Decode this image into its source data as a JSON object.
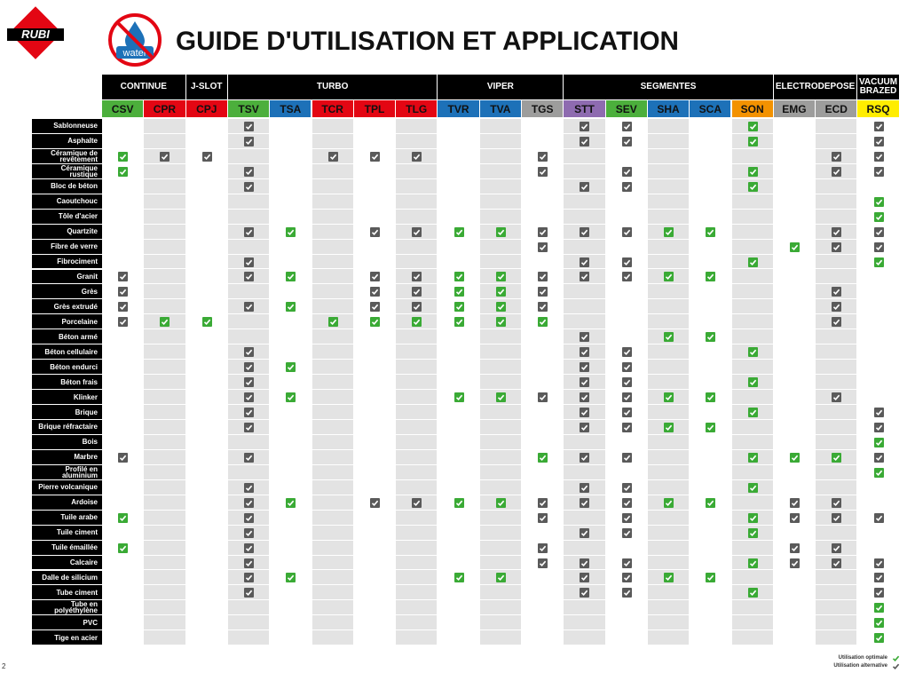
{
  "header": {
    "logo": "RUBI",
    "icon_text": "water",
    "title": "GUIDE D'UTILISATION ET APPLICATION"
  },
  "table": {
    "groups": [
      {
        "label": "CONTINUE",
        "span": 2
      },
      {
        "label": "J-SLOT",
        "span": 1
      },
      {
        "label": "TURBO",
        "span": 5
      },
      {
        "label": "VIPER",
        "span": 3
      },
      {
        "label": "SEGMENTES",
        "span": 5
      },
      {
        "label": "ELECTRODEPOSE",
        "span": 2
      },
      {
        "label": "VACUUM BRAZED",
        "span": 1
      }
    ],
    "columns": [
      {
        "code": "CSV",
        "color": "#4caf3c"
      },
      {
        "code": "CPR",
        "color": "#e30613"
      },
      {
        "code": "CPJ",
        "color": "#e30613"
      },
      {
        "code": "TSV",
        "color": "#4caf3c"
      },
      {
        "code": "TSA",
        "color": "#1d71b8"
      },
      {
        "code": "TCR",
        "color": "#e30613"
      },
      {
        "code": "TPL",
        "color": "#e30613"
      },
      {
        "code": "TLG",
        "color": "#e30613"
      },
      {
        "code": "TVR",
        "color": "#1d71b8"
      },
      {
        "code": "TVA",
        "color": "#1d71b8"
      },
      {
        "code": "TGS",
        "color": "#9d9d9c"
      },
      {
        "code": "STT",
        "color": "#8e6bb0"
      },
      {
        "code": "SEV",
        "color": "#4caf3c"
      },
      {
        "code": "SHA",
        "color": "#1d71b8"
      },
      {
        "code": "SCA",
        "color": "#1d71b8"
      },
      {
        "code": "SON",
        "color": "#f39200"
      },
      {
        "code": "EMG",
        "color": "#9d9d9c"
      },
      {
        "code": "ECD",
        "color": "#9d9d9c"
      },
      {
        "code": "RSQ",
        "color": "#ffed00"
      }
    ],
    "rows": [
      {
        "label": "Sablonneuse",
        "cells": [
          0,
          0,
          0,
          2,
          0,
          0,
          0,
          0,
          0,
          0,
          0,
          2,
          2,
          0,
          0,
          1,
          0,
          0,
          2
        ]
      },
      {
        "label": "Asphalte",
        "cells": [
          0,
          0,
          0,
          2,
          0,
          0,
          0,
          0,
          0,
          0,
          0,
          2,
          2,
          0,
          0,
          1,
          0,
          0,
          2
        ]
      },
      {
        "label": "Céramique de revêtement",
        "cells": [
          1,
          2,
          2,
          0,
          0,
          2,
          2,
          2,
          0,
          0,
          2,
          0,
          0,
          0,
          0,
          0,
          0,
          2,
          2
        ]
      },
      {
        "label": "Céramique rustique",
        "cells": [
          1,
          0,
          0,
          2,
          0,
          0,
          0,
          0,
          0,
          0,
          2,
          0,
          2,
          0,
          0,
          1,
          0,
          2,
          2
        ]
      },
      {
        "label": "Bloc de béton",
        "cells": [
          0,
          0,
          0,
          2,
          0,
          0,
          0,
          0,
          0,
          0,
          0,
          2,
          2,
          0,
          0,
          1,
          0,
          0,
          0
        ]
      },
      {
        "label": "Caoutchouc",
        "cells": [
          0,
          0,
          0,
          0,
          0,
          0,
          0,
          0,
          0,
          0,
          0,
          0,
          0,
          0,
          0,
          0,
          0,
          0,
          1
        ]
      },
      {
        "label": "Tôle d'acier",
        "cells": [
          0,
          0,
          0,
          0,
          0,
          0,
          0,
          0,
          0,
          0,
          0,
          0,
          0,
          0,
          0,
          0,
          0,
          0,
          1
        ]
      },
      {
        "label": "Quartzite",
        "cells": [
          0,
          0,
          0,
          2,
          1,
          0,
          2,
          2,
          1,
          1,
          2,
          2,
          2,
          1,
          1,
          0,
          0,
          2,
          2
        ]
      },
      {
        "label": "Fibre de verre",
        "cells": [
          0,
          0,
          0,
          0,
          0,
          0,
          0,
          0,
          0,
          0,
          2,
          0,
          0,
          0,
          0,
          0,
          1,
          2,
          2
        ]
      },
      {
        "label": "Fibrociment",
        "cells": [
          0,
          0,
          0,
          2,
          0,
          0,
          0,
          0,
          0,
          0,
          0,
          2,
          2,
          0,
          0,
          1,
          0,
          0,
          1
        ]
      },
      {
        "label": "Granit",
        "cells": [
          2,
          0,
          0,
          2,
          1,
          0,
          2,
          2,
          1,
          1,
          2,
          2,
          2,
          1,
          1,
          0,
          0,
          0,
          0
        ]
      },
      {
        "label": "Grès",
        "cells": [
          2,
          0,
          0,
          0,
          0,
          0,
          2,
          2,
          1,
          1,
          2,
          0,
          0,
          0,
          0,
          0,
          0,
          2,
          0
        ]
      },
      {
        "label": "Grès extrudé",
        "cells": [
          2,
          0,
          0,
          2,
          1,
          0,
          2,
          2,
          1,
          1,
          2,
          0,
          0,
          0,
          0,
          0,
          0,
          2,
          0
        ]
      },
      {
        "label": "Porcelaine",
        "cells": [
          2,
          1,
          1,
          0,
          0,
          1,
          1,
          1,
          1,
          1,
          1,
          0,
          0,
          0,
          0,
          0,
          0,
          2,
          0
        ]
      },
      {
        "label": "Béton armé",
        "cells": [
          0,
          0,
          0,
          0,
          0,
          0,
          0,
          0,
          0,
          0,
          0,
          2,
          0,
          1,
          1,
          0,
          0,
          0,
          0
        ]
      },
      {
        "label": "Béton cellulaire",
        "cells": [
          0,
          0,
          0,
          2,
          0,
          0,
          0,
          0,
          0,
          0,
          0,
          2,
          2,
          0,
          0,
          1,
          0,
          0,
          0
        ]
      },
      {
        "label": "Béton endurci",
        "cells": [
          0,
          0,
          0,
          2,
          1,
          0,
          0,
          0,
          0,
          0,
          0,
          2,
          2,
          0,
          0,
          0,
          0,
          0,
          0
        ]
      },
      {
        "label": "Béton frais",
        "cells": [
          0,
          0,
          0,
          2,
          0,
          0,
          0,
          0,
          0,
          0,
          0,
          2,
          2,
          0,
          0,
          1,
          0,
          0,
          0
        ]
      },
      {
        "label": "Klinker",
        "cells": [
          0,
          0,
          0,
          2,
          1,
          0,
          0,
          0,
          1,
          1,
          2,
          2,
          2,
          1,
          1,
          0,
          0,
          2,
          0
        ]
      },
      {
        "label": "Brique",
        "cells": [
          0,
          0,
          0,
          2,
          0,
          0,
          0,
          0,
          0,
          0,
          0,
          2,
          2,
          0,
          0,
          1,
          0,
          0,
          2
        ]
      },
      {
        "label": "Brique réfractaire",
        "cells": [
          0,
          0,
          0,
          2,
          0,
          0,
          0,
          0,
          0,
          0,
          0,
          2,
          2,
          1,
          1,
          0,
          0,
          0,
          2
        ]
      },
      {
        "label": "Bois",
        "cells": [
          0,
          0,
          0,
          0,
          0,
          0,
          0,
          0,
          0,
          0,
          0,
          0,
          0,
          0,
          0,
          0,
          0,
          0,
          1
        ]
      },
      {
        "label": "Marbre",
        "cells": [
          2,
          0,
          0,
          2,
          0,
          0,
          0,
          0,
          0,
          0,
          1,
          2,
          2,
          0,
          0,
          1,
          1,
          1,
          2
        ]
      },
      {
        "label": "Profilé en aluminium",
        "cells": [
          0,
          0,
          0,
          0,
          0,
          0,
          0,
          0,
          0,
          0,
          0,
          0,
          0,
          0,
          0,
          0,
          0,
          0,
          1
        ]
      },
      {
        "label": "Pierre volcanique",
        "cells": [
          0,
          0,
          0,
          2,
          0,
          0,
          0,
          0,
          0,
          0,
          0,
          2,
          2,
          0,
          0,
          1,
          0,
          0,
          0
        ]
      },
      {
        "label": "Ardoise",
        "cells": [
          0,
          0,
          0,
          2,
          1,
          0,
          2,
          2,
          1,
          1,
          2,
          2,
          2,
          1,
          1,
          0,
          2,
          2,
          0
        ]
      },
      {
        "label": "Tuile arabe",
        "cells": [
          1,
          0,
          0,
          2,
          0,
          0,
          0,
          0,
          0,
          0,
          2,
          0,
          2,
          0,
          0,
          1,
          2,
          2,
          2
        ]
      },
      {
        "label": "Tuile ciment",
        "cells": [
          0,
          0,
          0,
          2,
          0,
          0,
          0,
          0,
          0,
          0,
          0,
          2,
          2,
          0,
          0,
          1,
          0,
          0,
          0
        ]
      },
      {
        "label": "Tuile émaillée",
        "cells": [
          1,
          0,
          0,
          2,
          0,
          0,
          0,
          0,
          0,
          0,
          2,
          0,
          0,
          0,
          0,
          0,
          2,
          2,
          0
        ]
      },
      {
        "label": "Calcaire",
        "cells": [
          0,
          0,
          0,
          2,
          0,
          0,
          0,
          0,
          0,
          0,
          2,
          2,
          2,
          0,
          0,
          1,
          2,
          2,
          2
        ]
      },
      {
        "label": "Dalle de silicium",
        "cells": [
          0,
          0,
          0,
          2,
          1,
          0,
          0,
          0,
          1,
          1,
          0,
          2,
          2,
          1,
          1,
          0,
          0,
          0,
          2
        ]
      },
      {
        "label": "Tube ciment",
        "cells": [
          0,
          0,
          0,
          2,
          0,
          0,
          0,
          0,
          0,
          0,
          0,
          2,
          2,
          0,
          0,
          1,
          0,
          0,
          2
        ]
      },
      {
        "label": "Tube en polyéthylène",
        "cells": [
          0,
          0,
          0,
          0,
          0,
          0,
          0,
          0,
          0,
          0,
          0,
          0,
          0,
          0,
          0,
          0,
          0,
          0,
          1
        ]
      },
      {
        "label": "PVC",
        "cells": [
          0,
          0,
          0,
          0,
          0,
          0,
          0,
          0,
          0,
          0,
          0,
          0,
          0,
          0,
          0,
          0,
          0,
          0,
          1
        ]
      },
      {
        "label": "Tige en acier",
        "cells": [
          0,
          0,
          0,
          0,
          0,
          0,
          0,
          0,
          0,
          0,
          0,
          0,
          0,
          0,
          0,
          0,
          0,
          0,
          1
        ]
      }
    ]
  },
  "legend": [
    {
      "label": "Utilisation optimale",
      "code": 1,
      "color": "#3aaa35"
    },
    {
      "label": "Utilisation alternative",
      "code": 2,
      "color": "#5a5a5a"
    }
  ],
  "page_number": "2"
}
